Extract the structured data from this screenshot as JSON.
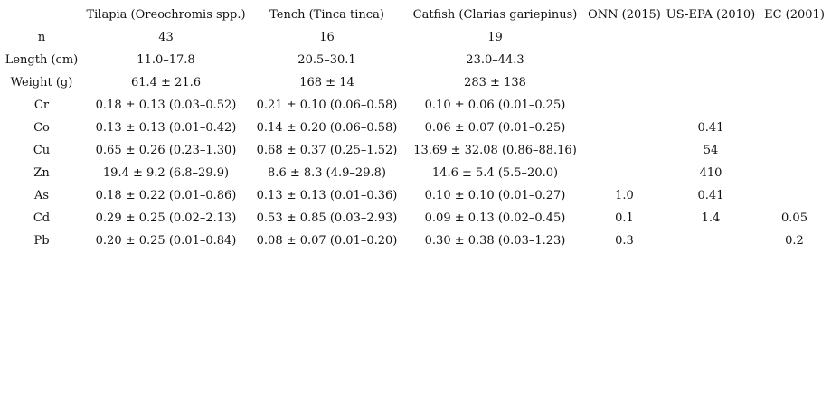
{
  "table": {
    "headers": [
      "",
      "Tilapia (Oreochromis spp.)",
      "Tench (Tinca tinca)",
      "Catfish (Clarias gariepinus)",
      "ONN (2015)",
      "US-EPA (2010)",
      "EC (2001)"
    ],
    "rows": [
      [
        "n",
        "43",
        "16",
        "19",
        "",
        "",
        ""
      ],
      [
        "Length (cm)",
        "11.0–17.8",
        "20.5–30.1",
        "23.0–44.3",
        "",
        "",
        ""
      ],
      [
        "Weight (g)",
        "61.4 ± 21.6",
        "168 ± 14",
        "283 ± 138",
        "",
        "",
        ""
      ],
      [
        "Cr",
        "0.18 ± 0.13 (0.03–0.52)",
        "0.21 ± 0.10 (0.06–0.58)",
        "0.10 ± 0.06 (0.01–0.25)",
        "",
        "",
        ""
      ],
      [
        "Co",
        "0.13 ± 0.13 (0.01–0.42)",
        "0.14 ± 0.20 (0.06–0.58)",
        "0.06 ± 0.07 (0.01–0.25)",
        "",
        "0.41",
        ""
      ],
      [
        "Cu",
        "0.65 ± 0.26 (0.23–1.30)",
        "0.68 ± 0.37 (0.25–1.52)",
        "13.69 ± 32.08 (0.86–88.16)",
        "",
        "54",
        ""
      ],
      [
        "Zn",
        "19.4 ± 9.2 (6.8–29.9)",
        "8.6 ± 8.3 (4.9–29.8)",
        "14.6 ± 5.4 (5.5–20.0)",
        "",
        "410",
        ""
      ],
      [
        "As",
        "0.18 ± 0.22 (0.01–0.86)",
        "0.13 ± 0.13 (0.01–0.36)",
        "0.10 ± 0.10 (0.01–0.27)",
        "1.0",
        "0.41",
        ""
      ],
      [
        "Cd",
        "0.29 ± 0.25 (0.02–2.13)",
        "0.53 ± 0.85 (0.03–2.93)",
        "0.09 ± 0.13 (0.02–0.45)",
        "0.1",
        "1.4",
        "0.05"
      ],
      [
        "Pb",
        "0.20 ± 0.25 (0.01–0.84)",
        "0.08 ± 0.07 (0.01–0.20)",
        "0.30 ± 0.38 (0.03–1.23)",
        "0.3",
        "",
        "0.2"
      ]
    ]
  }
}
